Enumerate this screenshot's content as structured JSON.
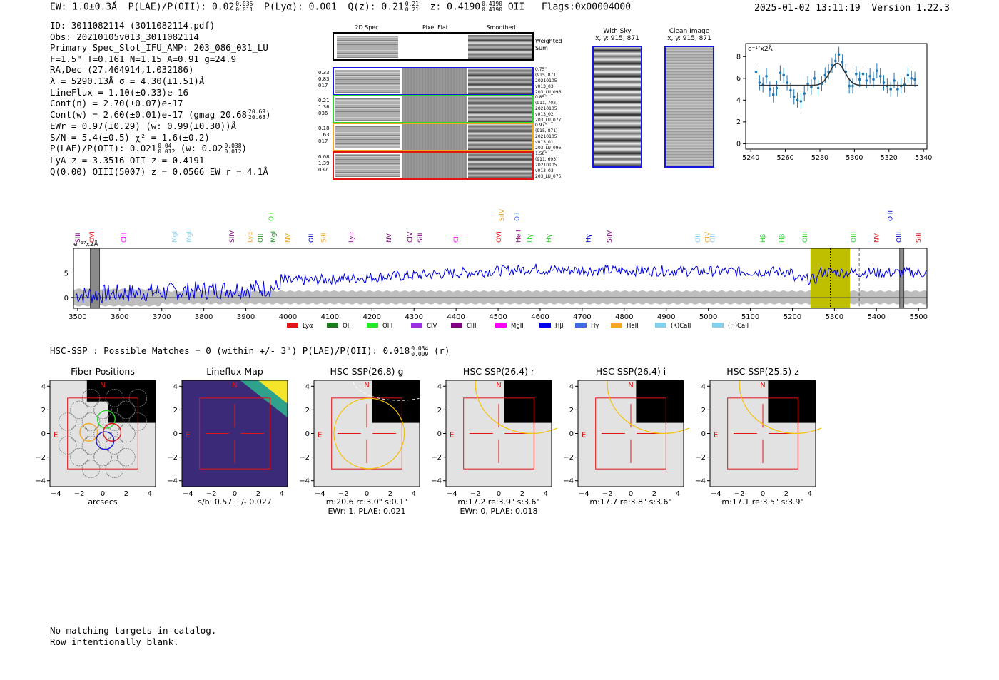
{
  "header": {
    "ew": "EW: 1.0±0.3Å",
    "plae_label": "P(LAE)/P(OII): 0.02",
    "plae_hi": "0.035",
    "plae_lo": "0.011",
    "plya": "P(Lyα): 0.001",
    "qz_label": "Q(z): 0.21",
    "qz_hi": "0.21",
    "qz_lo": "0.21",
    "z_label": "z: 0.4190",
    "z_hi": "0.4190",
    "z_lo": "0.4190",
    "z_line": "OII",
    "flags": "Flags:0x00004000",
    "timestamp": "2025-01-02 13:11:19",
    "version": "Version 1.22.3"
  },
  "info": {
    "id": "ID: 3011082114 (3011082114.pdf)",
    "obs": "Obs: 20210105v013_3011082114",
    "slot": "Primary Spec_Slot_IFU_AMP: 203_086_031_LU",
    "fparams": "F=1.5\"  T=0.161  N=1.15  A=0.91  g=24.9",
    "radec": "RA,Dec (27.464914,1.032186)",
    "lambda": "λ = 5290.13Å  σ = 4.30(±1.51)Å",
    "lineflux": "LineFlux = 1.10(±0.33)e-16",
    "contn": "Cont(n) = 2.70(±0.07)e-17",
    "contw": "Cont(w) = 2.60(±0.01)e-17 (gmag 20.68",
    "contw_hi": "20.69",
    "contw_lo": "20.68",
    "contw_close": ")",
    "ewr": "EWr = 0.97(±0.29) (w: 0.99(±0.30))Å",
    "sn": "S/N = 5.4(±0.5)  χ² = 1.6(±0.2)",
    "plae": "P(LAE)/P(OII): 0.021",
    "plae_hi": "0.04",
    "plae_lo": "0.012",
    "plae_w": "(w: 0.02",
    "plae_w_hi": "0.038",
    "plae_w_lo": "0.012",
    "plae_w_close": ")",
    "lya_z": "LyA z = 3.3516  OII z = 0.4191",
    "q_line": "Q(0.00) OIII(5007) z = 0.0566  EW r = 4.1Å"
  },
  "cutouts": {
    "col_2d": "2D Spec",
    "col_flat": "Pixel Flat",
    "col_smooth": "Smoothed",
    "weighted": "Weighted Sum",
    "rows": [
      {
        "color": "#1515e0",
        "left": [
          "0.33",
          "0.83",
          "017"
        ],
        "right": [
          "0.75\"",
          "(915, 871)",
          "20210105",
          "v013_03",
          "203_LU_096"
        ]
      },
      {
        "color": "#2ad62a",
        "left": [
          "0.21",
          "1.36",
          "036"
        ],
        "right": [
          "0.85\"",
          "(911, 702)",
          "20210105",
          "v013_02",
          "203_LU_077"
        ]
      },
      {
        "color": "#f5a623",
        "left": [
          "0.18",
          "1.63",
          "017"
        ],
        "right": [
          "0.97\"",
          "(915, 871)",
          "20210105",
          "v013_01",
          "203_LU_096"
        ]
      },
      {
        "color": "#e01515",
        "left": [
          "0.08",
          "1.39",
          "037"
        ],
        "right": [
          "1.58\"",
          "(911, 693)",
          "20210105",
          "v013_03",
          "203_LU_076"
        ]
      }
    ]
  },
  "sky": {
    "with_sky": "With Sky",
    "with_sky_xy": "x, y: 915, 871",
    "clean": "Clean Image",
    "clean_xy": "x, y: 915, 871"
  },
  "fit_plot": {
    "ylabel": "e⁻¹⁷x2Å",
    "xlim": [
      5237,
      5342
    ],
    "ylim": [
      -0.5,
      9.2
    ],
    "xticks": [
      5240,
      5260,
      5280,
      5300,
      5320,
      5340
    ],
    "yticks": [
      0,
      2,
      4,
      6,
      8
    ],
    "continuum": 5.35,
    "peak": 7.4,
    "center": 5290.1,
    "sigma": 4.3,
    "points": [
      [
        5243,
        6.6
      ],
      [
        5245,
        5.6
      ],
      [
        5247,
        5.4
      ],
      [
        5249,
        6.2
      ],
      [
        5251,
        5.0
      ],
      [
        5253,
        4.5
      ],
      [
        5255,
        5.1
      ],
      [
        5257,
        6.5
      ],
      [
        5259,
        6.3
      ],
      [
        5261,
        5.6
      ],
      [
        5263,
        4.9
      ],
      [
        5265,
        4.3
      ],
      [
        5267,
        4.0
      ],
      [
        5269,
        3.9
      ],
      [
        5271,
        4.6
      ],
      [
        5273,
        5.5
      ],
      [
        5275,
        5.2
      ],
      [
        5277,
        6.0
      ],
      [
        5279,
        5.1
      ],
      [
        5281,
        5.5
      ],
      [
        5283,
        6.3
      ],
      [
        5285,
        6.6
      ],
      [
        5287,
        7.2
      ],
      [
        5289,
        7.6
      ],
      [
        5291,
        8.2
      ],
      [
        5293,
        7.5
      ],
      [
        5295,
        6.6
      ],
      [
        5297,
        5.3
      ],
      [
        5299,
        5.3
      ],
      [
        5301,
        6.4
      ],
      [
        5303,
        5.9
      ],
      [
        5305,
        6.4
      ],
      [
        5307,
        5.8
      ],
      [
        5309,
        6.2
      ],
      [
        5311,
        5.9
      ],
      [
        5313,
        6.7
      ],
      [
        5315,
        6.2
      ],
      [
        5317,
        5.6
      ],
      [
        5319,
        5.3
      ],
      [
        5321,
        5.0
      ],
      [
        5323,
        5.8
      ],
      [
        5325,
        5.0
      ],
      [
        5327,
        5.3
      ],
      [
        5329,
        5.4
      ],
      [
        5331,
        6.3
      ],
      [
        5333,
        6.0
      ],
      [
        5335,
        5.9
      ]
    ]
  },
  "spectrum": {
    "ylabel": "e⁻¹⁷x2Å",
    "xlim": [
      3490,
      5520
    ],
    "ylim": [
      -2.2,
      10
    ],
    "xticks": [
      3500,
      3600,
      3700,
      3800,
      3900,
      4000,
      4100,
      4200,
      4300,
      4400,
      4500,
      4600,
      4700,
      4800,
      4900,
      5000,
      5100,
      5200,
      5300,
      5400,
      5500
    ],
    "yticks": [
      0,
      5
    ],
    "highlight": [
      5243,
      5337
    ],
    "obs_line": 5290.1,
    "masks": [
      [
        3530,
        3552
      ],
      [
        5455,
        5465
      ]
    ],
    "dashed_line": 5359,
    "line_labels": [
      {
        "name": "SiII",
        "x": 3500,
        "color": "#800080",
        "raised": false
      },
      {
        "name": "OVI",
        "x": 3534,
        "color": "#e01515",
        "raised": false
      },
      {
        "name": "CIII",
        "x": 3610,
        "color": "#ff00ff",
        "raised": false
      },
      {
        "name": "MgII",
        "x": 3730,
        "color": "#87ceeb",
        "raised": false
      },
      {
        "name": "MgII",
        "x": 3765,
        "color": "#87ceeb",
        "raised": false
      },
      {
        "name": "SiIV",
        "x": 3867,
        "color": "#800080",
        "raised": false
      },
      {
        "name": "Lyα",
        "x": 3910,
        "color": "#f5a623",
        "raised": false
      },
      {
        "name": "OII",
        "x": 3935,
        "color": "#1f8f1f",
        "raised": false
      },
      {
        "name": "OII",
        "x": 3960,
        "color": "#2ad62a",
        "raised": true
      },
      {
        "name": "MgII",
        "x": 3965,
        "color": "#1f8f1f",
        "raised": false
      },
      {
        "name": "NV",
        "x": 4000,
        "color": "#f5a623",
        "raised": false
      },
      {
        "name": "OII",
        "x": 4055,
        "color": "#0000cc",
        "raised": false
      },
      {
        "name": "SiII",
        "x": 4085,
        "color": "#f5a623",
        "raised": false
      },
      {
        "name": "Lyα",
        "x": 4150,
        "color": "#800080",
        "raised": false
      },
      {
        "name": "NV",
        "x": 4240,
        "color": "#800080",
        "raised": false
      },
      {
        "name": "CIV",
        "x": 4290,
        "color": "#800080",
        "raised": false
      },
      {
        "name": "SiII",
        "x": 4315,
        "color": "#800080",
        "raised": false
      },
      {
        "name": "CII",
        "x": 4400,
        "color": "#ff00ff",
        "raised": false
      },
      {
        "name": "OVI",
        "x": 4502,
        "color": "#e01515",
        "raised": false
      },
      {
        "name": "SiIV",
        "x": 4508,
        "color": "#f5a623",
        "raised": true
      },
      {
        "name": "OII",
        "x": 4545,
        "color": "#4169e1",
        "raised": true
      },
      {
        "name": "HeII",
        "x": 4548,
        "color": "#800080",
        "raised": false
      },
      {
        "name": "Hγ",
        "x": 4575,
        "color": "#2ad62a",
        "raised": false
      },
      {
        "name": "Hγ",
        "x": 4620,
        "color": "#2ad62a",
        "raised": false
      },
      {
        "name": "Hγ",
        "x": 4715,
        "color": "#0000cc",
        "raised": false
      },
      {
        "name": "SiIV",
        "x": 4765,
        "color": "#800080",
        "raised": false
      },
      {
        "name": "OII",
        "x": 4975,
        "color": "#87ceeb",
        "raised": false
      },
      {
        "name": "CIV",
        "x": 4998,
        "color": "#f5a623",
        "raised": false
      },
      {
        "name": "OII",
        "x": 5010,
        "color": "#87ceeb",
        "raised": false
      },
      {
        "name": "Hβ",
        "x": 5130,
        "color": "#2ad62a",
        "raised": false
      },
      {
        "name": "Hβ",
        "x": 5175,
        "color": "#2ad62a",
        "raised": false
      },
      {
        "name": "OIII",
        "x": 5230,
        "color": "#2ad62a",
        "raised": false
      },
      {
        "name": "OIII",
        "x": 5345,
        "color": "#2ad62a",
        "raised": false
      },
      {
        "name": "NV",
        "x": 5400,
        "color": "#e01515",
        "raised": false
      },
      {
        "name": "OIII",
        "x": 5433,
        "color": "#0000cc",
        "raised": true
      },
      {
        "name": "OIII",
        "x": 5453,
        "color": "#0000cc",
        "raised": false
      },
      {
        "name": "SiII",
        "x": 5500,
        "color": "#e01515",
        "raised": false
      }
    ],
    "legend": [
      {
        "name": "Lyα",
        "color": "#e01515"
      },
      {
        "name": "OII",
        "color": "#1f7a1f"
      },
      {
        "name": "OIII",
        "color": "#2ae62a"
      },
      {
        "name": "CIV",
        "color": "#9b30e0"
      },
      {
        "name": "CIII",
        "color": "#800080"
      },
      {
        "name": "MgII",
        "color": "#ff00ff"
      },
      {
        "name": "Hβ",
        "color": "#0000ee"
      },
      {
        "name": "Hγ",
        "color": "#4169e1"
      },
      {
        "name": "HeII",
        "color": "#f5a623"
      },
      {
        "name": "(K)CaII",
        "color": "#87ceeb"
      },
      {
        "name": "(H)CaII",
        "color": "#87ceeb"
      }
    ]
  },
  "hsc": {
    "summary": "HSC-SSP : Possible Matches = 0 (within +/- 3\")  P(LAE)/P(OII): 0.018",
    "summary_hi": "0.034",
    "summary_lo": "0.009",
    "summary_band": "(r)",
    "panels": [
      {
        "title": "Fiber Positions",
        "label1": "arcsecs",
        "label2": ""
      },
      {
        "title": "Lineflux Map",
        "label1": "s/b: 0.57 +/- 0.027",
        "label2": ""
      },
      {
        "title": "HSC SSP(26.8) g",
        "label1": "m:20.6 rc:3.0\"  s:0.1\"",
        "label2": "EWr: 1, PLAE: 0.021"
      },
      {
        "title": "HSC SSP(26.4) r",
        "label1": "m:17.2  re:3.9\"  s:3.6\"",
        "label2": "EWr: 0, PLAE: 0.018"
      },
      {
        "title": "HSC SSP(26.4) i",
        "label1": "m:17.7  re:3.8\"  s:3.6\"",
        "label2": ""
      },
      {
        "title": "HSC SSP(25.5) z",
        "label1": "m:17.1  re:3.5\"  s:3.9\"",
        "label2": ""
      }
    ],
    "ticks": [
      -4,
      -2,
      0,
      2,
      4
    ],
    "north": "N",
    "east": "E"
  },
  "footer": {
    "line1": "No matching targets in catalog.",
    "line2": "Row intentionally blank."
  }
}
